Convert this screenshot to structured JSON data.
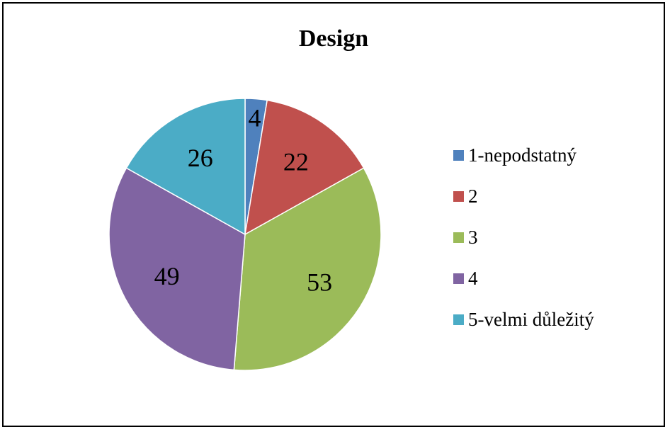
{
  "chart_data": {
    "type": "pie",
    "title": "Design",
    "categories": [
      "1-nepodstatný",
      "2",
      "3",
      "4",
      "5-velmi důležitý"
    ],
    "values": [
      4,
      22,
      53,
      49,
      26
    ],
    "colors": [
      "#4F81BD",
      "#C0504D",
      "#9BBB59",
      "#8064A2",
      "#4BACC6"
    ],
    "legend_position": "right",
    "start_angle_deg": 0,
    "direction": "clockwise"
  }
}
